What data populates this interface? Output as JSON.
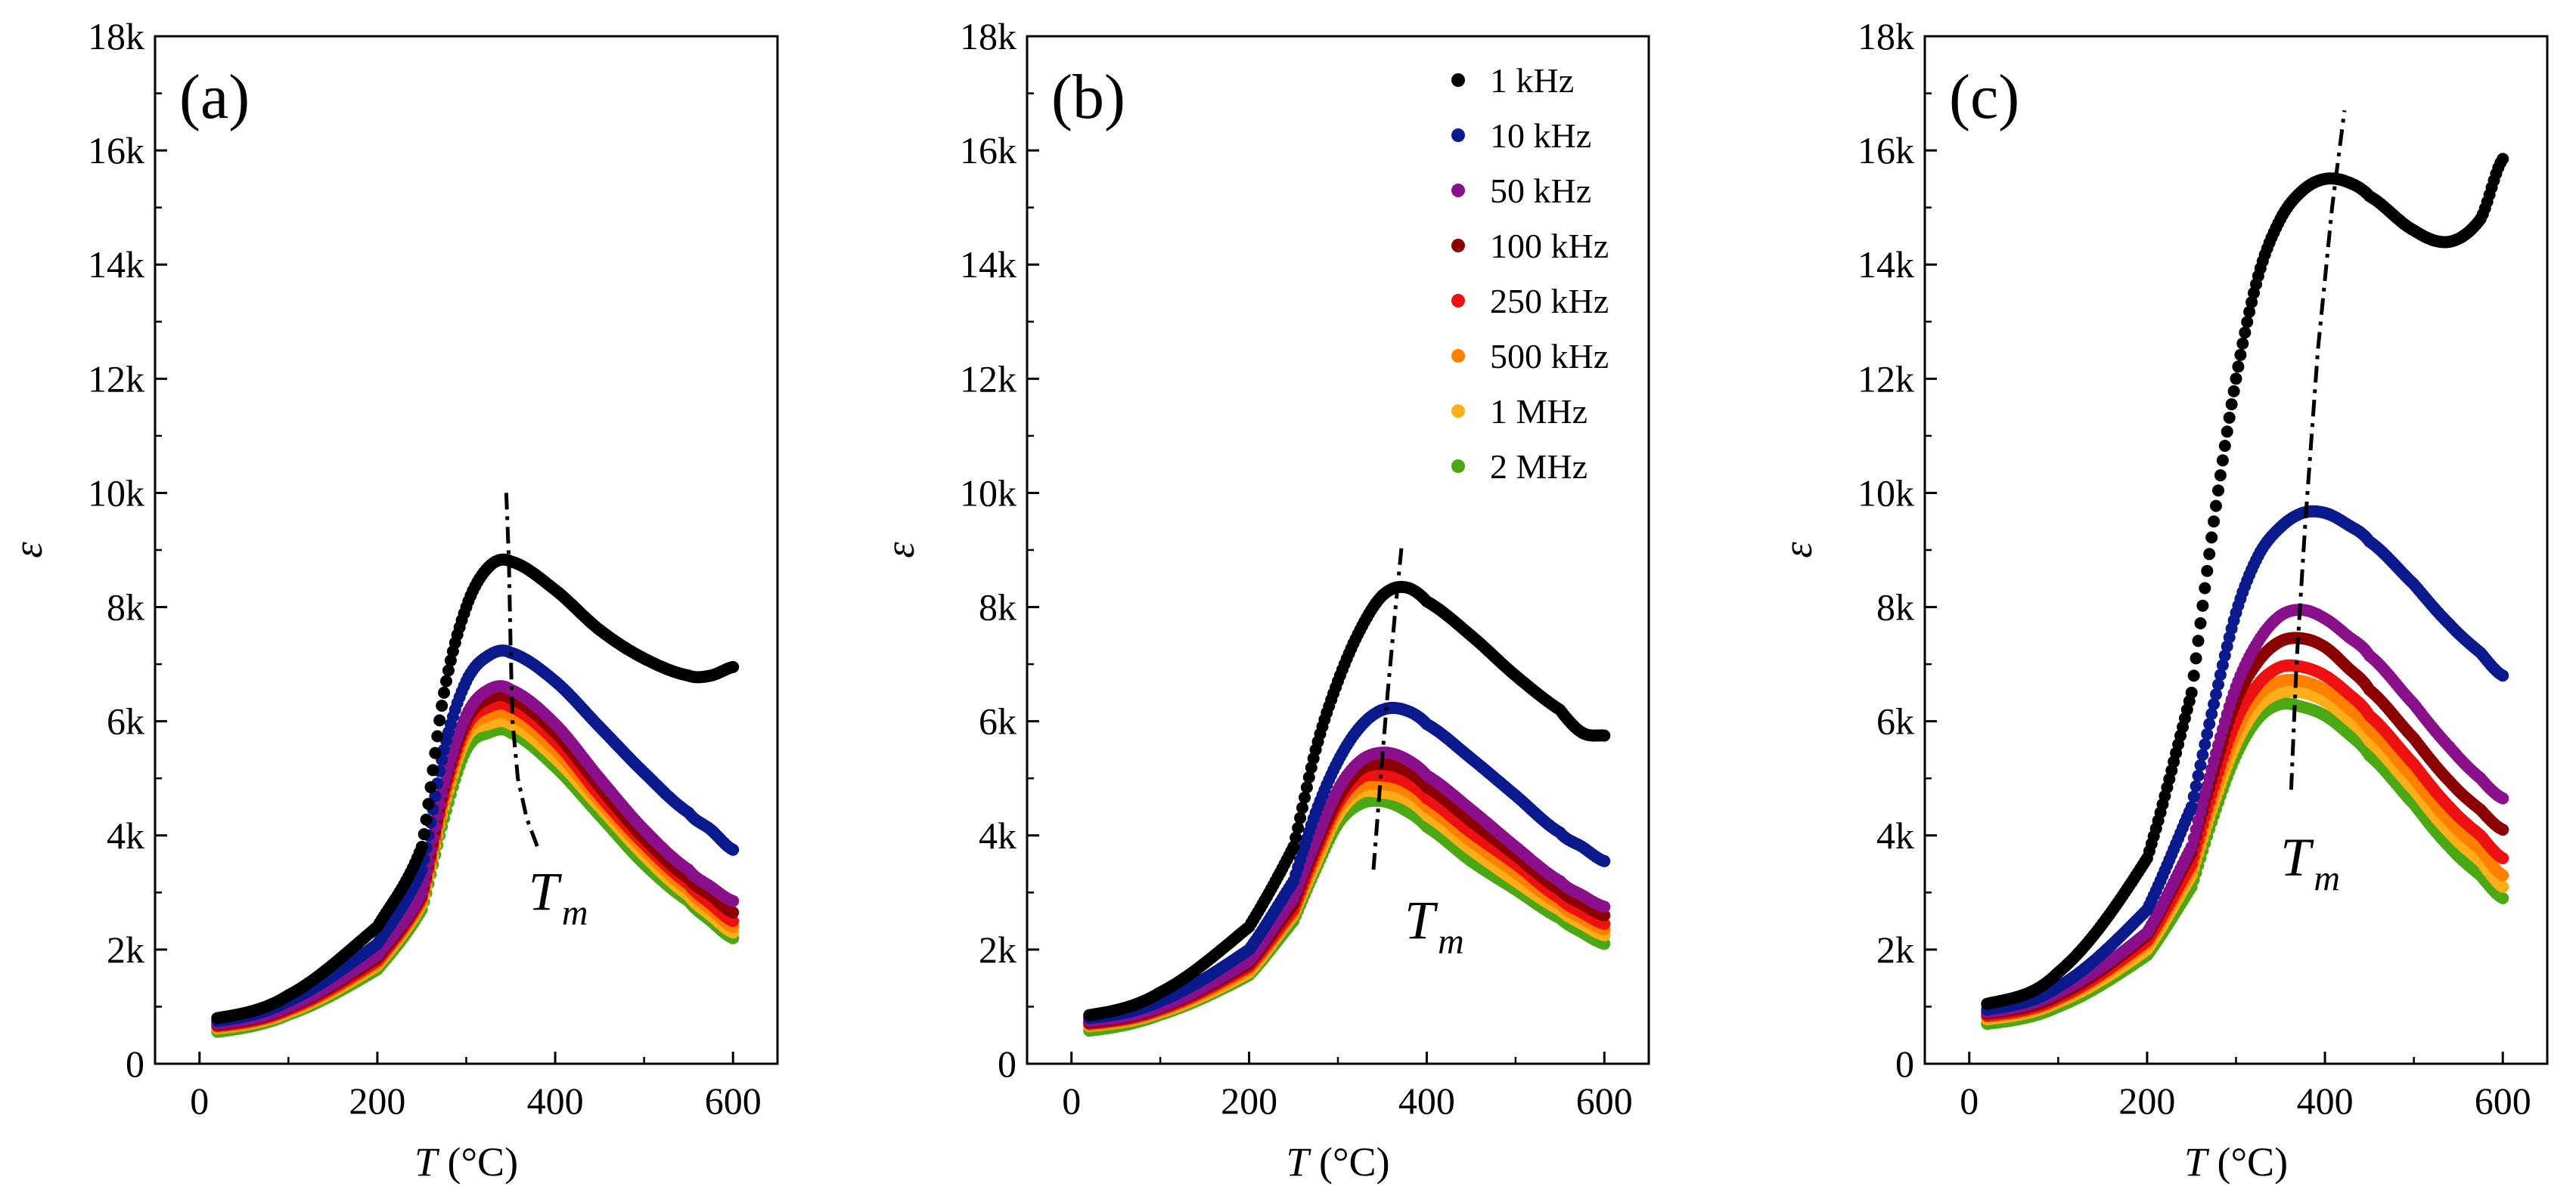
{
  "figure": {
    "x_axis_title": {
      "italic": "T",
      "rest": " (°C)"
    },
    "y_axis_title": "ε",
    "x_ticks": [
      "0",
      "200",
      "400",
      "600"
    ],
    "y_ticks": [
      "0",
      "2k",
      "4k",
      "6k",
      "8k",
      "10k",
      "12k",
      "14k",
      "16k",
      "18k"
    ],
    "tm_label": {
      "main": "T",
      "sub": "m"
    }
  },
  "legend": {
    "entries": [
      {
        "label": "1 kHz",
        "color": "#000000"
      },
      {
        "label": "10 kHz",
        "color": "#0a1a8c"
      },
      {
        "label": "50 kHz",
        "color": "#8a0f8a"
      },
      {
        "label": "100 kHz",
        "color": "#8b0000"
      },
      {
        "label": "250 kHz",
        "color": "#ee1111"
      },
      {
        "label": "500 kHz",
        "color": "#ff7f00"
      },
      {
        "label": "1 MHz",
        "color": "#ffae1a"
      },
      {
        "label": "2 MHz",
        "color": "#4aa814"
      }
    ]
  },
  "chart_data": [
    {
      "type": "scatter",
      "panel_label": "(a)",
      "xlabel": "T (°C)",
      "ylabel": "ε",
      "xlim": [
        -50,
        650
      ],
      "ylim": [
        0,
        18000
      ],
      "x": [
        20,
        100,
        200,
        250,
        275,
        300,
        325,
        350,
        400,
        450,
        500,
        550,
        575,
        600
      ],
      "series": [
        {
          "name": "1 kHz",
          "values": [
            800,
            1200,
            2400,
            3800,
            6500,
            8000,
            8700,
            8800,
            8300,
            7600,
            7100,
            6800,
            6800,
            6950
          ]
        },
        {
          "name": "10 kHz",
          "values": [
            750,
            1100,
            2100,
            3400,
            5500,
            6700,
            7150,
            7200,
            6700,
            5900,
            5100,
            4400,
            4100,
            3750
          ]
        },
        {
          "name": "50 kHz",
          "values": [
            700,
            1000,
            1900,
            3000,
            4900,
            6100,
            6550,
            6550,
            5950,
            5000,
            4100,
            3400,
            3100,
            2850
          ]
        },
        {
          "name": "100 kHz",
          "values": [
            680,
            980,
            1850,
            2950,
            4800,
            6000,
            6400,
            6400,
            5800,
            4850,
            3950,
            3250,
            2950,
            2650
          ]
        },
        {
          "name": "250 kHz",
          "values": [
            660,
            950,
            1800,
            2900,
            4700,
            5900,
            6250,
            6250,
            5650,
            4700,
            3850,
            3150,
            2800,
            2500
          ]
        },
        {
          "name": "500 kHz",
          "values": [
            640,
            930,
            1760,
            2850,
            4600,
            5800,
            6100,
            6100,
            5500,
            4600,
            3750,
            3050,
            2700,
            2400
          ]
        },
        {
          "name": "1 MHz",
          "values": [
            620,
            900,
            1720,
            2800,
            4500,
            5700,
            5950,
            5950,
            5350,
            4500,
            3650,
            2950,
            2600,
            2300
          ]
        },
        {
          "name": "2 MHz",
          "values": [
            560,
            860,
            1650,
            2700,
            4300,
            5500,
            5800,
            5800,
            5200,
            4350,
            3500,
            2850,
            2500,
            2200
          ]
        }
      ],
      "tm_line": {
        "x": [
          345,
          348,
          350,
          352,
          358,
          368,
          380
        ],
        "y": [
          10000,
          8800,
          7200,
          6000,
          5000,
          4300,
          3800
        ]
      },
      "tm_label_pos": {
        "x": 370,
        "y": 2700
      }
    },
    {
      "type": "scatter",
      "panel_label": "(b)",
      "xlabel": "T (°C)",
      "ylabel": "ε",
      "xlim": [
        -50,
        650
      ],
      "ylim": [
        0,
        18000
      ],
      "x": [
        20,
        100,
        200,
        250,
        275,
        300,
        325,
        350,
        375,
        400,
        450,
        500,
        550,
        575,
        600
      ],
      "series": [
        {
          "name": "1 kHz",
          "values": [
            850,
            1250,
            2400,
            3800,
            5500,
            6700,
            7600,
            8200,
            8350,
            8100,
            7500,
            6800,
            6200,
            5800,
            5750
          ]
        },
        {
          "name": "10 kHz",
          "values": [
            800,
            1100,
            2000,
            3200,
            4400,
            5300,
            5900,
            6200,
            6200,
            5950,
            5350,
            4700,
            4050,
            3800,
            3550
          ]
        },
        {
          "name": "50 kHz",
          "values": [
            750,
            1000,
            1800,
            2900,
            3900,
            4800,
            5300,
            5450,
            5350,
            5050,
            4450,
            3800,
            3200,
            2950,
            2750
          ]
        },
        {
          "name": "100 kHz",
          "values": [
            720,
            980,
            1750,
            2800,
            3800,
            4650,
            5150,
            5250,
            5150,
            4850,
            4250,
            3650,
            3050,
            2800,
            2600
          ]
        },
        {
          "name": "250 kHz",
          "values": [
            700,
            950,
            1700,
            2700,
            3700,
            4550,
            5000,
            5050,
            4950,
            4650,
            4050,
            3500,
            2900,
            2650,
            2450
          ]
        },
        {
          "name": "500 kHz",
          "values": [
            680,
            930,
            1650,
            2650,
            3600,
            4450,
            4850,
            4900,
            4800,
            4500,
            3900,
            3350,
            2800,
            2550,
            2350
          ]
        },
        {
          "name": "1 MHz",
          "values": [
            660,
            900,
            1600,
            2600,
            3500,
            4350,
            4750,
            4750,
            4650,
            4350,
            3750,
            3200,
            2700,
            2450,
            2250
          ]
        },
        {
          "name": "2 MHz",
          "values": [
            580,
            860,
            1550,
            2500,
            3400,
            4200,
            4550,
            4600,
            4450,
            4150,
            3550,
            3050,
            2550,
            2300,
            2100
          ]
        }
      ],
      "tm_line": {
        "x": [
          340,
          348,
          356,
          365,
          372
        ],
        "y": [
          3400,
          5000,
          6500,
          8000,
          9100
        ]
      },
      "tm_label_pos": {
        "x": 375,
        "y": 2200
      }
    },
    {
      "type": "scatter",
      "panel_label": "(c)",
      "xlabel": "T (°C)",
      "ylabel": "ε",
      "xlim": [
        -50,
        650
      ],
      "ylim": [
        0,
        18000
      ],
      "x": [
        20,
        100,
        200,
        250,
        275,
        300,
        325,
        350,
        375,
        400,
        425,
        450,
        500,
        540,
        575,
        600
      ],
      "series": [
        {
          "name": "1 kHz",
          "values": [
            1050,
            1600,
            3600,
            6500,
            9500,
            12000,
            13800,
            14800,
            15300,
            15500,
            15450,
            15200,
            14600,
            14400,
            14800,
            15850
          ]
        },
        {
          "name": "10 kHz",
          "values": [
            950,
            1350,
            2700,
            4500,
            6300,
            7900,
            8900,
            9400,
            9650,
            9650,
            9450,
            9150,
            8400,
            7700,
            7200,
            6800
          ]
        },
        {
          "name": "50 kHz",
          "values": [
            900,
            1250,
            2300,
            3800,
            5300,
            6600,
            7400,
            7850,
            7950,
            7800,
            7500,
            7150,
            6300,
            5550,
            5000,
            4650
          ]
        },
        {
          "name": "100 kHz",
          "values": [
            880,
            1200,
            2250,
            3700,
            5100,
            6350,
            7050,
            7400,
            7450,
            7300,
            6950,
            6550,
            5700,
            4950,
            4450,
            4100
          ]
        },
        {
          "name": "250 kHz",
          "values": [
            840,
            1150,
            2150,
            3500,
            4850,
            6000,
            6650,
            6950,
            6950,
            6800,
            6500,
            6100,
            5250,
            4500,
            4000,
            3600
          ]
        },
        {
          "name": "500 kHz",
          "values": [
            820,
            1120,
            2100,
            3400,
            4700,
            5800,
            6450,
            6700,
            6700,
            6550,
            6250,
            5850,
            5000,
            4250,
            3750,
            3300
          ]
        },
        {
          "name": "1 MHz",
          "values": [
            780,
            1080,
            2000,
            3300,
            4550,
            5600,
            6250,
            6500,
            6500,
            6350,
            6050,
            5650,
            4800,
            4050,
            3550,
            3100
          ]
        },
        {
          "name": "2 MHz",
          "values": [
            700,
            1000,
            1900,
            3100,
            4350,
            5400,
            6050,
            6300,
            6250,
            6100,
            5800,
            5400,
            4550,
            3800,
            3300,
            2900
          ]
        }
      ],
      "tm_line": {
        "x": [
          362,
          368,
          378,
          392,
          408,
          422
        ],
        "y": [
          4800,
          7000,
          9500,
          12500,
          15000,
          16700
        ]
      },
      "tm_label_pos": {
        "x": 350,
        "y": 3300
      }
    }
  ]
}
